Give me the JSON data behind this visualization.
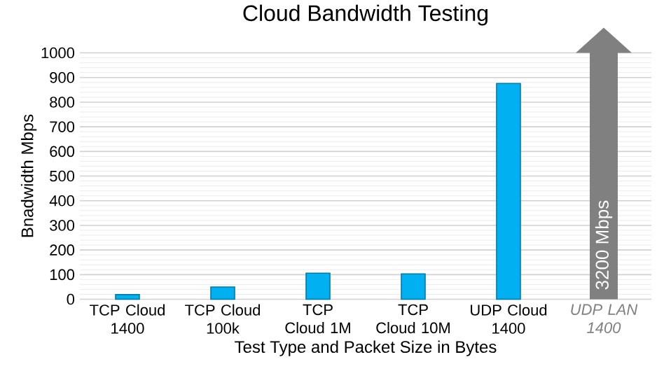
{
  "chart_data": {
    "type": "bar",
    "title": "Cloud Bandwidth Testing",
    "xlabel": "Test Type and Packet Size in Bytes",
    "ylabel": "Bnadwidth Mbps",
    "categories": [
      "TCP Cloud 1400",
      "TCP Cloud 100k",
      "TCP Cloud 1M",
      "TCP Cloud 10M",
      "UDP Cloud 1400",
      "UDP LAN 1400"
    ],
    "values": [
      19,
      50,
      106,
      103,
      876,
      null
    ],
    "color": "#00b0f0",
    "ylim": [
      0,
      1000
    ],
    "yticks": [
      0,
      100,
      200,
      300,
      400,
      500,
      600,
      700,
      800,
      900,
      1000
    ],
    "grid": "y",
    "annotations": [
      "3200 Mbps"
    ]
  }
}
